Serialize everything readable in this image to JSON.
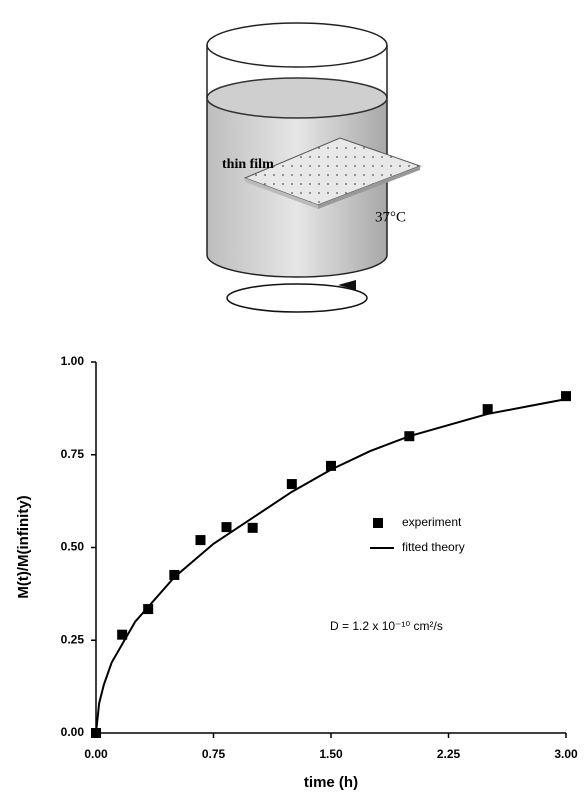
{
  "diagram": {
    "labels": [
      "thin film",
      "37°C"
    ]
  },
  "chart_data": {
    "type": "scatter",
    "xlabel": "time (h)",
    "ylabel": "M(t)/M(infinity)",
    "annotation": "D = 1.2 x 10⁻¹⁰ cm²/s",
    "xlim": [
      0,
      3
    ],
    "ylim": [
      0,
      1
    ],
    "xticks": [
      {
        "value": 0,
        "label": "0.00"
      },
      {
        "value": 0.75,
        "label": "0.75"
      },
      {
        "value": 1.5,
        "label": "1.50"
      },
      {
        "value": 2.25,
        "label": "2.25"
      },
      {
        "value": 3,
        "label": "3.00"
      }
    ],
    "yticks": [
      {
        "value": 0,
        "label": "0.00"
      },
      {
        "value": 0.25,
        "label": "0.25"
      },
      {
        "value": 0.5,
        "label": "0.50"
      },
      {
        "value": 0.75,
        "label": "0.75"
      },
      {
        "value": 1,
        "label": "1.00"
      }
    ],
    "legend": "right",
    "series": [
      {
        "name": "experiment",
        "type": "scatter",
        "color": "#000000",
        "x": [
          0,
          0.167,
          0.333,
          0.5,
          0.667,
          0.833,
          1.0,
          1.25,
          1.5,
          2.0,
          2.5,
          3.0
        ],
        "values": [
          0,
          0.265,
          0.334,
          0.426,
          0.52,
          0.555,
          0.553,
          0.671,
          0.72,
          0.8,
          0.873,
          0.908
        ]
      },
      {
        "name": "fitted theory",
        "type": "line",
        "color": "#000000",
        "x": [
          0,
          0.02,
          0.05,
          0.1,
          0.25,
          0.5,
          0.75,
          1,
          1.25,
          1.5,
          1.75,
          2,
          2.25,
          2.5,
          2.75,
          3
        ],
        "values": [
          0,
          0.08,
          0.13,
          0.19,
          0.3,
          0.42,
          0.51,
          0.58,
          0.65,
          0.71,
          0.76,
          0.8,
          0.83,
          0.86,
          0.88,
          0.9
        ]
      }
    ]
  }
}
